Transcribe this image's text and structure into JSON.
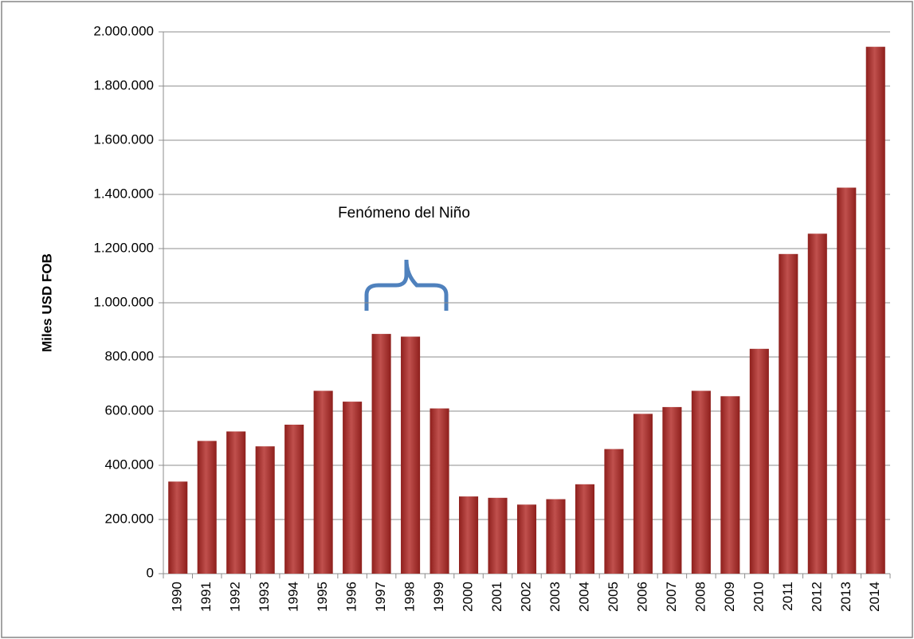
{
  "chart_data": {
    "type": "bar",
    "y_label": "Miles USD FOB",
    "annotation": "Fenómeno del Niño",
    "categories": [
      "1990",
      "1991",
      "1992",
      "1993",
      "1994",
      "1995",
      "1996",
      "1997",
      "1998",
      "1999",
      "2000",
      "2001",
      "2002",
      "2003",
      "2004",
      "2005",
      "2006",
      "2007",
      "2008",
      "2009",
      "2010",
      "2011",
      "2012",
      "2013",
      "2014"
    ],
    "values": [
      340000,
      490000,
      525000,
      470000,
      550000,
      675000,
      635000,
      885000,
      875000,
      610000,
      285000,
      280000,
      255000,
      275000,
      330000,
      460000,
      590000,
      615000,
      675000,
      655000,
      830000,
      1180000,
      1255000,
      1425000,
      1945000
    ],
    "color": "#c0504d",
    "ylim": [
      0,
      2000000
    ],
    "yticks": [
      0,
      {
        "value": 200000,
        "label": "200.000"
      },
      {
        "value": 400000,
        "label": "400.000"
      },
      {
        "value": 600000,
        "label": "600.000"
      },
      {
        "value": 800000,
        "label": "800.000"
      },
      {
        "value": 1000000,
        "label": "1.000.000"
      },
      {
        "value": 1200000,
        "label": "1.200.000"
      },
      {
        "value": 1400000,
        "label": "1.400.000"
      },
      {
        "value": 1600000,
        "label": "1.600.000"
      },
      {
        "value": 1800000,
        "label": "1.800.000"
      },
      {
        "value": 2000000,
        "label": "2.000.000"
      }
    ],
    "grid": true
  }
}
